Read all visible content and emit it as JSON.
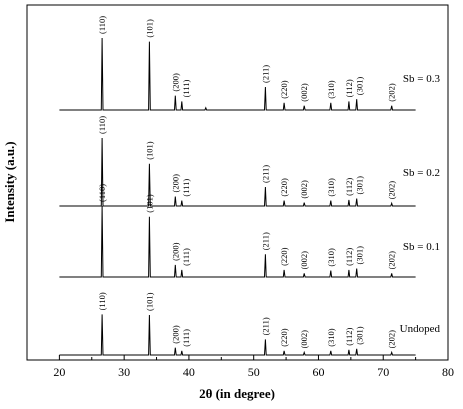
{
  "chart_data": {
    "type": "line",
    "title": "",
    "xlabel": "2θ (in degree)",
    "ylabel": "Intensity (a.u.)",
    "xlim": [
      15,
      80
    ],
    "xticks": [
      20,
      30,
      40,
      50,
      60,
      70,
      80
    ],
    "stacked": true,
    "series": [
      {
        "name": "Sb = 0.3",
        "peaks": [
          {
            "x": 26.6,
            "h": 1.0,
            "label": "(110)"
          },
          {
            "x": 33.9,
            "h": 0.95,
            "label": "(101)"
          },
          {
            "x": 37.9,
            "h": 0.2,
            "label": "(200)"
          },
          {
            "x": 38.9,
            "h": 0.12,
            "label": "(111)"
          },
          {
            "x": 42.6,
            "h": 0.03,
            "label": ""
          },
          {
            "x": 51.8,
            "h": 0.32,
            "label": "(211)"
          },
          {
            "x": 54.7,
            "h": 0.1,
            "label": "(220)"
          },
          {
            "x": 57.8,
            "h": 0.06,
            "label": "(002)"
          },
          {
            "x": 61.9,
            "h": 0.1,
            "label": "(310)"
          },
          {
            "x": 64.7,
            "h": 0.12,
            "label": "(112)"
          },
          {
            "x": 65.9,
            "h": 0.15,
            "label": "(301)"
          },
          {
            "x": 71.3,
            "h": 0.06,
            "label": "(202)"
          }
        ]
      },
      {
        "name": "Sb = 0.2",
        "peaks": [
          {
            "x": 26.6,
            "h": 1.0,
            "label": "(110)"
          },
          {
            "x": 33.9,
            "h": 0.62,
            "label": "(101)"
          },
          {
            "x": 37.9,
            "h": 0.14,
            "label": "(200)"
          },
          {
            "x": 38.9,
            "h": 0.08,
            "label": "(111)"
          },
          {
            "x": 51.8,
            "h": 0.28,
            "label": "(211)"
          },
          {
            "x": 54.7,
            "h": 0.08,
            "label": "(220)"
          },
          {
            "x": 57.8,
            "h": 0.05,
            "label": "(002)"
          },
          {
            "x": 61.9,
            "h": 0.08,
            "label": "(310)"
          },
          {
            "x": 64.7,
            "h": 0.09,
            "label": "(112)"
          },
          {
            "x": 65.9,
            "h": 0.11,
            "label": "(301)"
          },
          {
            "x": 71.3,
            "h": 0.04,
            "label": "(202)"
          }
        ]
      },
      {
        "name": "Sb = 0.1",
        "peaks": [
          {
            "x": 26.6,
            "h": 1.0,
            "label": "(110)"
          },
          {
            "x": 33.9,
            "h": 0.85,
            "label": "(101)"
          },
          {
            "x": 37.9,
            "h": 0.17,
            "label": "(200)"
          },
          {
            "x": 38.9,
            "h": 0.1,
            "label": "(111)"
          },
          {
            "x": 51.8,
            "h": 0.32,
            "label": "(211)"
          },
          {
            "x": 54.7,
            "h": 0.1,
            "label": "(220)"
          },
          {
            "x": 57.8,
            "h": 0.05,
            "label": "(002)"
          },
          {
            "x": 61.9,
            "h": 0.09,
            "label": "(310)"
          },
          {
            "x": 64.7,
            "h": 0.1,
            "label": "(112)"
          },
          {
            "x": 65.9,
            "h": 0.12,
            "label": "(301)"
          },
          {
            "x": 71.3,
            "h": 0.05,
            "label": "(202)"
          }
        ]
      },
      {
        "name": "Undoped",
        "peaks": [
          {
            "x": 26.6,
            "h": 0.78,
            "label": "(110)"
          },
          {
            "x": 33.9,
            "h": 0.77,
            "label": "(101)"
          },
          {
            "x": 37.9,
            "h": 0.14,
            "label": "(200)"
          },
          {
            "x": 38.9,
            "h": 0.08,
            "label": "(111)"
          },
          {
            "x": 51.8,
            "h": 0.3,
            "label": "(211)"
          },
          {
            "x": 54.7,
            "h": 0.08,
            "label": "(220)"
          },
          {
            "x": 57.8,
            "h": 0.05,
            "label": "(002)"
          },
          {
            "x": 61.9,
            "h": 0.08,
            "label": "(310)"
          },
          {
            "x": 64.7,
            "h": 0.1,
            "label": "(112)"
          },
          {
            "x": 65.9,
            "h": 0.12,
            "label": "(301)"
          },
          {
            "x": 71.3,
            "h": 0.05,
            "label": "(202)"
          }
        ]
      }
    ]
  }
}
